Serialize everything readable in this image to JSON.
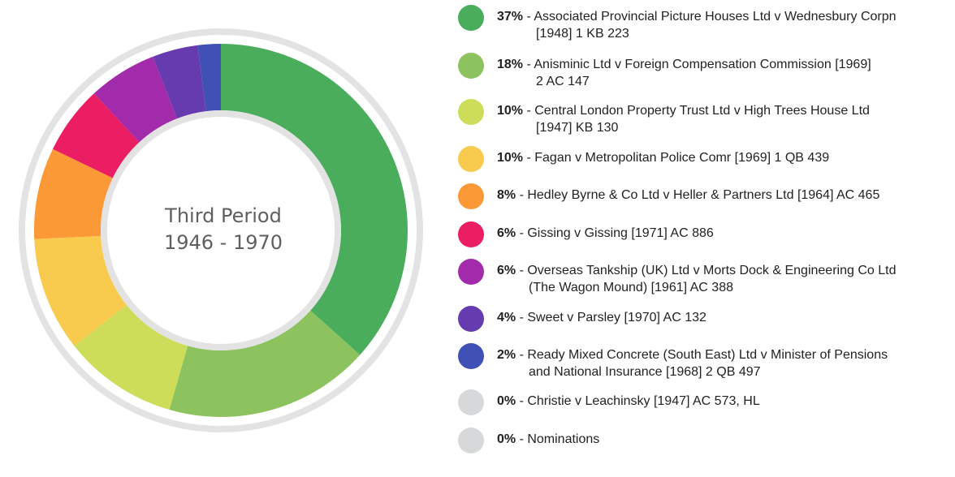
{
  "chart_data": {
    "type": "pie",
    "center_title": "Third Period",
    "center_subtitle": "1946 - 1970",
    "series": [
      {
        "pct_label": "37%",
        "value": 37,
        "color": "#4aad5b",
        "label": "Associated Provincial Picture Houses Ltd v Wednesbury Corpn [1948] 1 KB 223"
      },
      {
        "pct_label": "18%",
        "value": 18,
        "color": "#8cc35f",
        "label": "Anisminic Ltd v Foreign Compensation Commission [1969] 2 AC 147"
      },
      {
        "pct_label": "10%",
        "value": 10,
        "color": "#cddd5a",
        "label": "Central London Property Trust Ltd v High Trees House Ltd [1947] KB 130"
      },
      {
        "pct_label": "10%",
        "value": 10,
        "color": "#f8cb4e",
        "label": "Fagan v Metropolitan Police Comr [1969] 1 QB 439"
      },
      {
        "pct_label": "8%",
        "value": 8,
        "color": "#fb9937",
        "label": "Hedley Byrne & Co Ltd v Heller & Partners Ltd [1964] AC 465"
      },
      {
        "pct_label": "6%",
        "value": 6,
        "color": "#eb1e63",
        "label": "Gissing v Gissing [1971] AC 886"
      },
      {
        "pct_label": "6%",
        "value": 6,
        "color": "#a12baa",
        "label": "Overseas Tankship (UK) Ltd v Morts Dock & Engineering Co Ltd (The Wagon Mound) [1961] AC 388"
      },
      {
        "pct_label": "4%",
        "value": 4,
        "color": "#673bb0",
        "label": "Sweet v Parsley [1970] AC 132"
      },
      {
        "pct_label": "2%",
        "value": 2,
        "color": "#3f51b5",
        "label": "Ready Mixed Concrete (South East) Ltd v Minister of Pensions and National Insurance [1968] 2 QB 497"
      },
      {
        "pct_label": "0%",
        "value": 0,
        "color": "#d7d8d9",
        "label": "Christie v Leachinsky [1947] AC 573, HL"
      },
      {
        "pct_label": "0%",
        "value": 0,
        "color": "#d7d8d9",
        "label": "Nominations"
      }
    ],
    "legend": "right"
  },
  "legend_lines": [
    {
      "line1": "Associated Provincial Picture Houses Ltd v Wednesbury Corpn",
      "line2": "[1948] 1 KB 223"
    },
    {
      "line1": "Anisminic Ltd v Foreign Compensation Commission [1969]",
      "line2": "2 AC 147"
    },
    {
      "line1": "Central London Property Trust Ltd v High Trees House Ltd",
      "line2": "[1947] KB 130"
    },
    {
      "line1": "Fagan v Metropolitan Police Comr [1969] 1 QB 439",
      "line2": ""
    },
    {
      "line1": "Hedley Byrne & Co Ltd v Heller & Partners Ltd [1964] AC 465",
      "line2": ""
    },
    {
      "line1": "Gissing v Gissing [1971] AC 886",
      "line2": ""
    },
    {
      "line1": "Overseas Tankship (UK) Ltd v Morts Dock & Engineering Co Ltd",
      "line2": "(The Wagon Mound) [1961] AC 388"
    },
    {
      "line1": "Sweet v Parsley [1970] AC 132",
      "line2": ""
    },
    {
      "line1": "Ready Mixed Concrete (South East) Ltd v Minister of Pensions",
      "line2": "and National Insurance [1968] 2 QB 497"
    },
    {
      "line1": "Christie v Leachinsky [1947] AC 573, HL",
      "line2": ""
    },
    {
      "line1": "Nominations",
      "line2": ""
    }
  ]
}
